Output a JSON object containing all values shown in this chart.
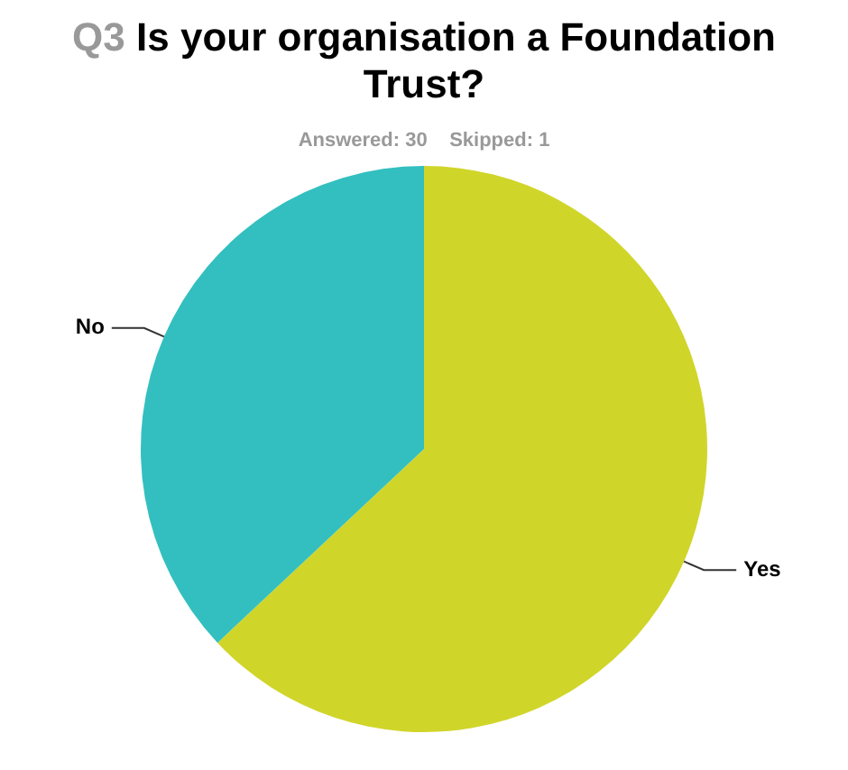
{
  "chart_data": {
    "type": "pie",
    "title": "Q3 Is your organisation a Foundation Trust?",
    "subtitle": "Answered: 30    Skipped: 1",
    "categories": [
      "Yes",
      "No"
    ],
    "values": [
      63,
      37
    ],
    "colors": [
      "#d0d52a",
      "#33bfbf"
    ],
    "legend": false
  }
}
